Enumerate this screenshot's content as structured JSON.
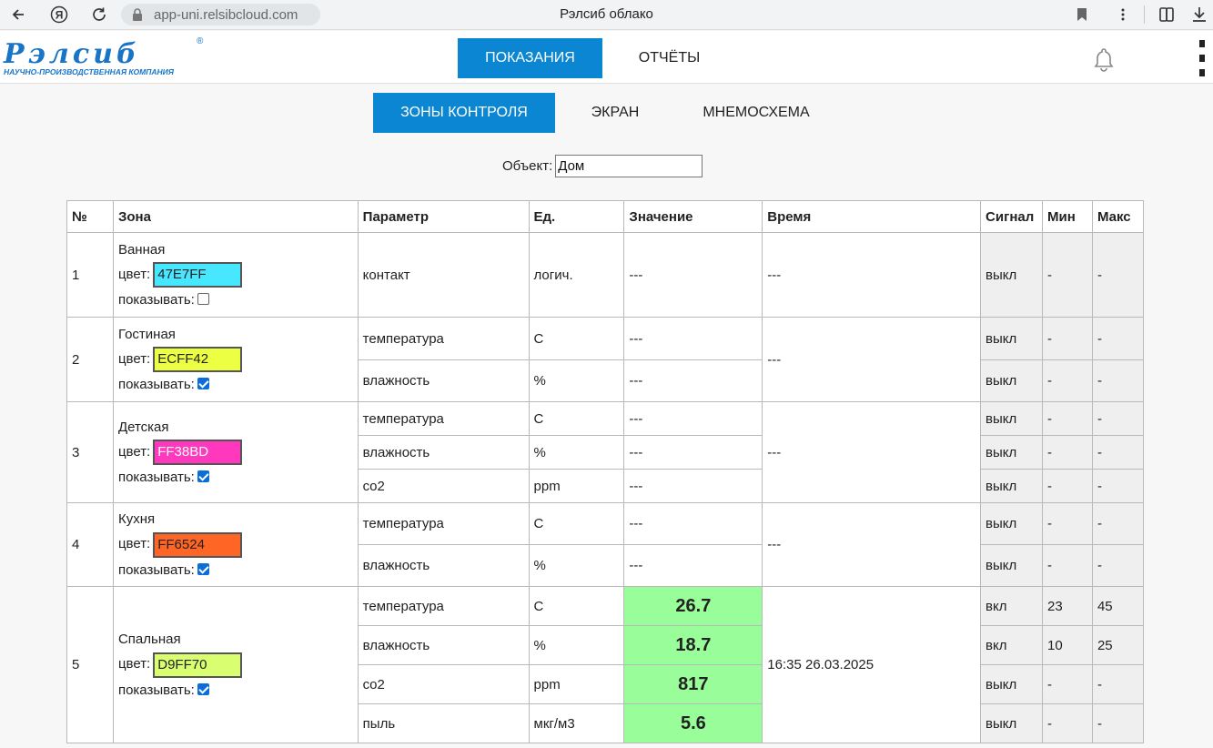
{
  "browser": {
    "url": "app-uni.relsibcloud.com",
    "page_title": "Рэлсиб облако",
    "icons": [
      "back-arrow-icon",
      "yandex-icon",
      "reload-icon",
      "lock-icon",
      "bookmark-icon",
      "more-vertical-icon",
      "extensions-icon",
      "download-icon"
    ]
  },
  "header": {
    "logo_text": "Рэлсиб",
    "logo_slogan": "НАУЧНО-ПРОИЗВОДСТВЕННАЯ КОМПАНИЯ",
    "nav": [
      {
        "label": "ПОКАЗАНИЯ",
        "active": true
      },
      {
        "label": "ОТЧЁТЫ",
        "active": false
      }
    ],
    "icons": [
      "bell-icon",
      "kebab-menu-icon"
    ]
  },
  "subtabs": [
    {
      "label": "ЗОНЫ КОНТРОЛЯ",
      "active": true
    },
    {
      "label": "ЭКРАН",
      "active": false
    },
    {
      "label": "МНЕМОСХЕМА",
      "active": false
    }
  ],
  "object": {
    "label": "Объект:",
    "value": "Дом"
  },
  "table": {
    "headers": [
      "№",
      "Зона",
      "Параметр",
      "Ед.",
      "Значение",
      "Время",
      "Сигнал",
      "Мин",
      "Макс"
    ],
    "color_label": "цвет:",
    "show_label": "показывать:",
    "zones": [
      {
        "num": "1",
        "name": "Ванная",
        "color": "47E7FF",
        "color_hex": "#47E7FF",
        "color_text": "#222222",
        "show": false,
        "time": "---",
        "params": [
          {
            "param": "контакт",
            "unit": "логич.",
            "value": "---",
            "signal": "выкл",
            "min": "-",
            "max": "-"
          }
        ]
      },
      {
        "num": "2",
        "name": "Гостиная",
        "color": "ECFF42",
        "color_hex": "#ECFF42",
        "color_text": "#222222",
        "show": true,
        "time": "---",
        "params": [
          {
            "param": "температура",
            "unit": "C",
            "value": "---",
            "signal": "выкл",
            "min": "-",
            "max": "-"
          },
          {
            "param": "влажность",
            "unit": "%",
            "value": "---",
            "signal": "выкл",
            "min": "-",
            "max": "-"
          }
        ]
      },
      {
        "num": "3",
        "name": "Детская",
        "color": "FF38BD",
        "color_hex": "#FF38BD",
        "color_text": "#ffffff",
        "show": true,
        "time": "---",
        "params": [
          {
            "param": "температура",
            "unit": "C",
            "value": "---",
            "signal": "выкл",
            "min": "-",
            "max": "-"
          },
          {
            "param": "влажность",
            "unit": "%",
            "value": "---",
            "signal": "выкл",
            "min": "-",
            "max": "-"
          },
          {
            "param": "co2",
            "unit": "ppm",
            "value": "---",
            "signal": "выкл",
            "min": "-",
            "max": "-"
          }
        ]
      },
      {
        "num": "4",
        "name": "Кухня",
        "color": "FF6524",
        "color_hex": "#FF6524",
        "color_text": "#222222",
        "show": true,
        "time": "---",
        "params": [
          {
            "param": "температура",
            "unit": "C",
            "value": "---",
            "signal": "выкл",
            "min": "-",
            "max": "-"
          },
          {
            "param": "влажность",
            "unit": "%",
            "value": "---",
            "signal": "выкл",
            "min": "-",
            "max": "-"
          }
        ]
      },
      {
        "num": "5",
        "name": "Спальная",
        "color": "D9FF70",
        "color_hex": "#D9FF70",
        "color_text": "#222222",
        "show": true,
        "time": "16:35 26.03.2025",
        "params": [
          {
            "param": "температура",
            "unit": "C",
            "value": "26.7",
            "signal": "вкл",
            "min": "23",
            "max": "45",
            "ok": true
          },
          {
            "param": "влажность",
            "unit": "%",
            "value": "18.7",
            "signal": "вкл",
            "min": "10",
            "max": "25",
            "ok": true
          },
          {
            "param": "co2",
            "unit": "ppm",
            "value": "817",
            "signal": "выкл",
            "min": "-",
            "max": "-",
            "ok": true
          },
          {
            "param": "пыль",
            "unit": "мкг/м3",
            "value": "5.6",
            "signal": "выкл",
            "min": "-",
            "max": "-",
            "ok": true
          }
        ]
      }
    ]
  },
  "colors": {
    "accent": "#0b86d2",
    "ok_value_bg": "#99fe99",
    "signal_bg": "#efefef"
  }
}
